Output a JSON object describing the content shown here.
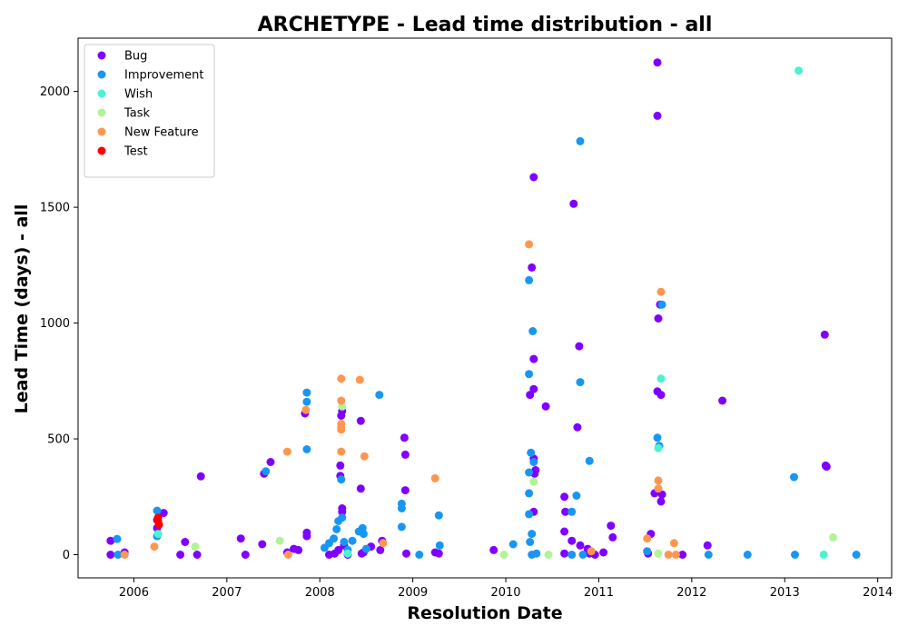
{
  "chart_data": {
    "type": "scatter",
    "title": "ARCHETYPE - Lead time distribution - all",
    "xlabel": "Resolution Date",
    "ylabel": "Lead Time (days) - all",
    "xlim": [
      2005.4,
      2014.15
    ],
    "ylim": [
      -100,
      2230
    ],
    "x_ticks": [
      2006,
      2007,
      2008,
      2009,
      2010,
      2011,
      2012,
      2013,
      2014
    ],
    "y_ticks": [
      0,
      500,
      1000,
      1500,
      2000
    ],
    "grid": false,
    "legend_position": "top-left",
    "series": [
      {
        "name": "Bug",
        "color": "#8000ff",
        "points": [
          [
            2005.75,
            60
          ],
          [
            2005.75,
            0
          ],
          [
            2005.9,
            10
          ],
          [
            2006.25,
            150
          ],
          [
            2006.25,
            115
          ],
          [
            2006.32,
            180
          ],
          [
            2006.5,
            0
          ],
          [
            2006.55,
            55
          ],
          [
            2006.68,
            0
          ],
          [
            2006.72,
            338
          ],
          [
            2007.15,
            70
          ],
          [
            2007.2,
            0
          ],
          [
            2007.38,
            45
          ],
          [
            2007.4,
            350
          ],
          [
            2007.47,
            400
          ],
          [
            2007.65,
            10
          ],
          [
            2007.72,
            25
          ],
          [
            2007.77,
            20
          ],
          [
            2007.84,
            610
          ],
          [
            2007.86,
            95
          ],
          [
            2007.86,
            80
          ],
          [
            2008.1,
            0
          ],
          [
            2008.16,
            5
          ],
          [
            2008.2,
            20
          ],
          [
            2008.22,
            340
          ],
          [
            2008.22,
            385
          ],
          [
            2008.23,
            600
          ],
          [
            2008.24,
            200
          ],
          [
            2008.24,
            185
          ],
          [
            2008.24,
            620
          ],
          [
            2008.26,
            40
          ],
          [
            2008.3,
            0
          ],
          [
            2008.44,
            285
          ],
          [
            2008.44,
            578
          ],
          [
            2008.45,
            5
          ],
          [
            2008.47,
            10
          ],
          [
            2008.55,
            35
          ],
          [
            2008.65,
            20
          ],
          [
            2008.67,
            60
          ],
          [
            2008.91,
            505
          ],
          [
            2008.92,
            432
          ],
          [
            2008.92,
            278
          ],
          [
            2008.93,
            5
          ],
          [
            2009.24,
            10
          ],
          [
            2009.28,
            5
          ],
          [
            2009.87,
            20
          ],
          [
            2010.26,
            690
          ],
          [
            2010.28,
            1240
          ],
          [
            2010.3,
            1630
          ],
          [
            2010.3,
            845
          ],
          [
            2010.3,
            715
          ],
          [
            2010.3,
            415
          ],
          [
            2010.3,
            185
          ],
          [
            2010.31,
            350
          ],
          [
            2010.32,
            365
          ],
          [
            2010.43,
            640
          ],
          [
            2010.63,
            5
          ],
          [
            2010.63,
            250
          ],
          [
            2010.63,
            100
          ],
          [
            2010.64,
            185
          ],
          [
            2010.71,
            60
          ],
          [
            2010.73,
            1515
          ],
          [
            2010.77,
            550
          ],
          [
            2010.79,
            900
          ],
          [
            2010.8,
            40
          ],
          [
            2010.88,
            25
          ],
          [
            2010.9,
            5
          ],
          [
            2010.96,
            0
          ],
          [
            2011.05,
            10
          ],
          [
            2011.13,
            125
          ],
          [
            2011.15,
            75
          ],
          [
            2011.53,
            5
          ],
          [
            2011.56,
            90
          ],
          [
            2011.6,
            265
          ],
          [
            2011.63,
            2125
          ],
          [
            2011.63,
            1895
          ],
          [
            2011.63,
            705
          ],
          [
            2011.64,
            1020
          ],
          [
            2011.66,
            1080
          ],
          [
            2011.67,
            690
          ],
          [
            2011.67,
            230
          ],
          [
            2011.68,
            260
          ],
          [
            2011.9,
            0
          ],
          [
            2012.17,
            40
          ],
          [
            2012.33,
            665
          ],
          [
            2013.43,
            950
          ],
          [
            2013.44,
            385
          ],
          [
            2013.45,
            380
          ]
        ]
      },
      {
        "name": "Improvement",
        "color": "#1996f3",
        "points": [
          [
            2005.82,
            68
          ],
          [
            2005.83,
            0
          ],
          [
            2006.25,
            190
          ],
          [
            2006.25,
            80
          ],
          [
            2007.42,
            360
          ],
          [
            2007.86,
            700
          ],
          [
            2007.86,
            660
          ],
          [
            2007.86,
            455
          ],
          [
            2008.05,
            30
          ],
          [
            2008.1,
            50
          ],
          [
            2008.15,
            70
          ],
          [
            2008.18,
            110
          ],
          [
            2008.2,
            145
          ],
          [
            2008.23,
            325
          ],
          [
            2008.24,
            160
          ],
          [
            2008.26,
            55
          ],
          [
            2008.3,
            20
          ],
          [
            2008.35,
            60
          ],
          [
            2008.42,
            100
          ],
          [
            2008.46,
            115
          ],
          [
            2008.47,
            90
          ],
          [
            2008.5,
            25
          ],
          [
            2008.64,
            690
          ],
          [
            2008.88,
            200
          ],
          [
            2008.88,
            220
          ],
          [
            2008.88,
            120
          ],
          [
            2009.07,
            0
          ],
          [
            2009.28,
            170
          ],
          [
            2009.29,
            40
          ],
          [
            2010.08,
            45
          ],
          [
            2010.25,
            1185
          ],
          [
            2010.25,
            780
          ],
          [
            2010.25,
            355
          ],
          [
            2010.25,
            265
          ],
          [
            2010.25,
            175
          ],
          [
            2010.26,
            55
          ],
          [
            2010.27,
            440
          ],
          [
            2010.28,
            90
          ],
          [
            2010.28,
            0
          ],
          [
            2010.29,
            965
          ],
          [
            2010.3,
            400
          ],
          [
            2010.33,
            5
          ],
          [
            2010.71,
            185
          ],
          [
            2010.71,
            0
          ],
          [
            2010.76,
            255
          ],
          [
            2010.8,
            1785
          ],
          [
            2010.8,
            745
          ],
          [
            2010.83,
            0
          ],
          [
            2010.9,
            405
          ],
          [
            2011.52,
            15
          ],
          [
            2011.63,
            505
          ],
          [
            2011.65,
            470
          ],
          [
            2011.68,
            1080
          ],
          [
            2012.18,
            0
          ],
          [
            2012.6,
            0
          ],
          [
            2013.1,
            335
          ],
          [
            2013.11,
            0
          ],
          [
            2013.77,
            0
          ]
        ]
      },
      {
        "name": "Wish",
        "color": "#4df3ce",
        "points": [
          [
            2006.26,
            90
          ],
          [
            2008.3,
            5
          ],
          [
            2011.64,
            460
          ],
          [
            2011.67,
            760
          ],
          [
            2013.15,
            2090
          ],
          [
            2013.42,
            0
          ]
        ]
      },
      {
        "name": "Task",
        "color": "#b2f396",
        "points": [
          [
            2006.66,
            35
          ],
          [
            2007.57,
            60
          ],
          [
            2008.24,
            640
          ],
          [
            2009.98,
            0
          ],
          [
            2010.3,
            315
          ],
          [
            2010.46,
            0
          ],
          [
            2011.64,
            5
          ],
          [
            2013.52,
            75
          ]
        ]
      },
      {
        "name": "New Feature",
        "color": "#ff964f",
        "points": [
          [
            2005.9,
            0
          ],
          [
            2006.22,
            35
          ],
          [
            2007.65,
            445
          ],
          [
            2007.66,
            0
          ],
          [
            2007.85,
            625
          ],
          [
            2008.23,
            760
          ],
          [
            2008.23,
            665
          ],
          [
            2008.23,
            565
          ],
          [
            2008.23,
            550
          ],
          [
            2008.23,
            540
          ],
          [
            2008.23,
            445
          ],
          [
            2008.43,
            755
          ],
          [
            2008.48,
            425
          ],
          [
            2008.68,
            50
          ],
          [
            2009.24,
            330
          ],
          [
            2010.25,
            1340
          ],
          [
            2010.92,
            15
          ],
          [
            2011.52,
            70
          ],
          [
            2011.64,
            320
          ],
          [
            2011.64,
            285
          ],
          [
            2011.67,
            1135
          ],
          [
            2011.75,
            0
          ],
          [
            2011.81,
            50
          ],
          [
            2011.83,
            0
          ]
        ]
      },
      {
        "name": "Test",
        "color": "#ff0000",
        "points": [
          [
            2006.26,
            160
          ],
          [
            2006.26,
            145
          ],
          [
            2006.27,
            130
          ]
        ]
      }
    ]
  }
}
